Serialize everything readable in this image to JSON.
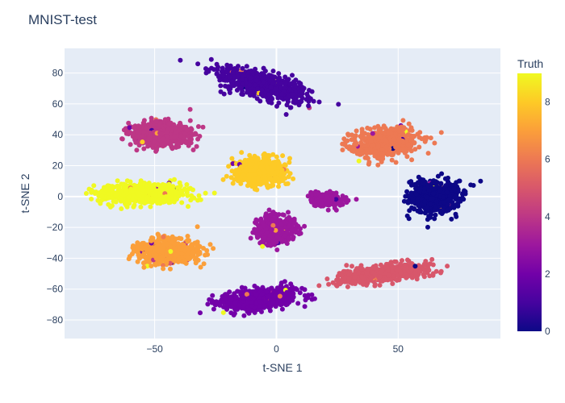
{
  "chart_data": {
    "type": "scatter",
    "title": "MNIST-test",
    "xlabel": "t-SNE 1",
    "ylabel": "t-SNE 2",
    "xlim": [
      -87,
      92
    ],
    "ylim": [
      -92,
      96
    ],
    "x_ticks": [
      -50,
      0,
      50
    ],
    "y_ticks": [
      -80,
      -60,
      -40,
      -20,
      0,
      20,
      40,
      60,
      80
    ],
    "grid": true,
    "colorbar": {
      "title": "Truth",
      "range": [
        0,
        9
      ],
      "ticks": [
        0,
        2,
        4,
        6,
        8
      ],
      "colorscale": [
        "#0d0887",
        "#46039f",
        "#7201a8",
        "#9c179e",
        "#bd3786",
        "#d8576b",
        "#ed7953",
        "#fb9f3a",
        "#fdca26",
        "#f0f921"
      ]
    },
    "clusters": [
      {
        "label": 0,
        "center": [
          65,
          0
        ],
        "spread": [
          9,
          9
        ],
        "count": 600
      },
      {
        "label": 1,
        "center": [
          -6,
          72
        ],
        "spread": [
          18,
          7
        ],
        "count": 620,
        "angle": -25
      },
      {
        "label": 2,
        "center": [
          -7,
          -66
        ],
        "spread": [
          14,
          6
        ],
        "count": 580,
        "angle": 10
      },
      {
        "label": 3,
        "center": [
          21,
          -2
        ],
        "spread": [
          6,
          4
        ],
        "count": 220
      },
      {
        "label": 3,
        "center": [
          0,
          -22
        ],
        "spread": [
          7,
          8
        ],
        "count": 420
      },
      {
        "label": 4,
        "center": [
          -47,
          40
        ],
        "spread": [
          11,
          7
        ],
        "count": 620
      },
      {
        "label": 5,
        "center": [
          43,
          -50
        ],
        "spread": [
          16,
          5
        ],
        "count": 560,
        "angle": 10
      },
      {
        "label": 6,
        "center": [
          45,
          35
        ],
        "spread": [
          12,
          8
        ],
        "count": 560,
        "angle": 15
      },
      {
        "label": 7,
        "center": [
          -44,
          -36
        ],
        "spread": [
          11,
          7
        ],
        "count": 600
      },
      {
        "label": 8,
        "center": [
          -7,
          16
        ],
        "spread": [
          9,
          8
        ],
        "count": 600
      },
      {
        "label": 9,
        "center": [
          -55,
          2
        ],
        "spread": [
          15,
          6
        ],
        "count": 620
      }
    ]
  }
}
